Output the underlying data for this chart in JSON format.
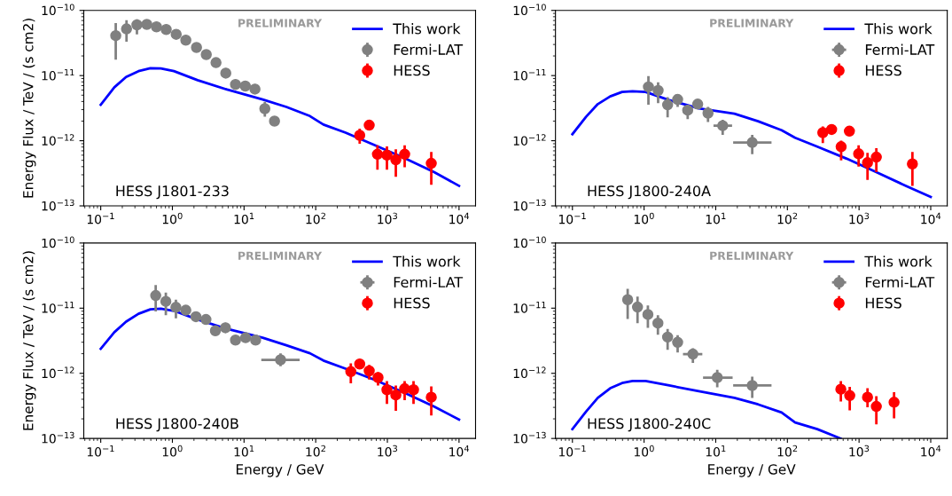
{
  "chart_data": [
    {
      "type": "scatter",
      "ylabel": "Energy Flux / TeV / (s cm2)",
      "annotations": [
        "PRELIMINARY",
        "HESS J1801-233"
      ],
      "xlim": [
        0.058,
        17000
      ],
      "ylim": [
        1e-13,
        1e-10
      ],
      "log": "xy",
      "legend": "top right",
      "marker": "circle",
      "xticks": [
        {
          "value": 0.1,
          "label": "10$^{−1}$"
        },
        {
          "value": 1,
          "label": "10$^{0}$"
        },
        {
          "value": 10,
          "label": "10$^{1}$"
        },
        {
          "value": 100,
          "label": "10$^{2}$"
        },
        {
          "value": 1000,
          "label": "10$^{3}$"
        },
        {
          "value": 10000,
          "label": "10$^{4}$"
        }
      ],
      "yticks": [
        {
          "value": 1e-13,
          "label": "10$^{−13}$"
        },
        {
          "value": 1e-12,
          "label": "10$^{−12}$"
        },
        {
          "value": 1e-11,
          "label": "10$^{−11}$"
        },
        {
          "value": 1e-10,
          "label": "10$^{−10}$"
        }
      ],
      "series": [
        {
          "name": "This work",
          "type": "line",
          "marker": "none",
          "color": "#0000ff",
          "x": [
            0.1,
            0.155,
            0.226,
            0.337,
            0.493,
            0.69,
            1.05,
            2.25,
            5.8,
            18.2,
            38.9,
            83,
            128,
            261,
            673,
            1742,
            4500,
            10000
          ],
          "values": [
            3.56e-12,
            6.6e-12,
            9.5e-12,
            1.17e-11,
            1.3e-11,
            1.29e-11,
            1.17e-11,
            8.5e-12,
            6.1e-12,
            4.3e-12,
            3.3e-12,
            2.39e-12,
            1.77e-12,
            1.33e-12,
            8.5e-13,
            5.4e-13,
            3.3e-13,
            2.03e-13
          ]
        },
        {
          "name": "Fermi-LAT",
          "type": "scatter",
          "color": "#808080",
          "x": [
            0.162,
            0.229,
            0.32,
            0.44,
            0.6,
            0.82,
            1.13,
            1.54,
            2.17,
            2.97,
            4.06,
            5.56,
            7.6,
            10.4,
            14.2,
            19.5,
            26.6
          ],
          "values": [
            4.1e-11,
            5.2e-11,
            6e-11,
            6.1e-11,
            5.6e-11,
            5.1e-11,
            4.3e-11,
            3.5e-11,
            2.7e-11,
            2.1e-11,
            1.58e-11,
            1.09e-11,
            7.3e-12,
            6.9e-12,
            6.2e-12,
            3.1e-12,
            2e-12
          ],
          "errors": [
            [
              1.75e-11,
              6.4e-11
            ],
            [
              3.3e-11,
              7.1e-11
            ],
            [
              4.3e-11,
              7.3e-11
            ],
            null,
            null,
            null,
            null,
            null,
            null,
            null,
            null,
            null,
            null,
            null,
            null,
            [
              2.33e-12,
              3.97e-12
            ],
            null
          ]
        },
        {
          "name": "HESS",
          "type": "scatter",
          "color": "#ff0000",
          "x": [
            411,
            558,
            727,
            986,
            1312,
            1743,
            4100
          ],
          "values": [
            1.21e-12,
            1.73e-12,
            6.2e-13,
            6e-13,
            5.1e-13,
            6.2e-13,
            4.5e-13
          ],
          "errors": [
            [
              9e-13,
              1.53e-12
            ],
            null,
            [
              3.6e-13,
              8.5e-13
            ],
            [
              3.6e-13,
              8.2e-13
            ],
            [
              2.8e-13,
              7.4e-13
            ],
            [
              3.9e-13,
              8.5e-13
            ],
            [
              2.1e-13,
              6.7e-13
            ]
          ]
        }
      ]
    },
    {
      "type": "scatter",
      "annotations": [
        "PRELIMINARY",
        "HESS J1800-240A"
      ],
      "xlim": [
        0.058,
        17000
      ],
      "ylim": [
        1e-13,
        1e-10
      ],
      "log": "xy",
      "legend": "top right",
      "marker": "circle",
      "xticks": [
        {
          "value": 0.1,
          "label": "10$^{−1}$"
        },
        {
          "value": 1,
          "label": "10$^{0}$"
        },
        {
          "value": 10,
          "label": "10$^{1}$"
        },
        {
          "value": 100,
          "label": "10$^{2}$"
        },
        {
          "value": 1000,
          "label": "10$^{3}$"
        },
        {
          "value": 10000,
          "label": "10$^{4}$"
        }
      ],
      "yticks": [
        {
          "value": 1e-13,
          "label": "10$^{−13}$"
        },
        {
          "value": 1e-12,
          "label": "10$^{−12}$"
        },
        {
          "value": 1e-11,
          "label": "10$^{−11}$"
        },
        {
          "value": 1e-10,
          "label": "10$^{−10}$"
        }
      ],
      "series": [
        {
          "name": "This work",
          "type": "line",
          "marker": "none",
          "color": "#0000ff",
          "x": [
            0.1,
            0.155,
            0.226,
            0.337,
            0.493,
            0.69,
            1.05,
            2.25,
            5.8,
            18.2,
            38.9,
            83,
            128,
            261,
            673,
            1742,
            4500,
            10000
          ],
          "values": [
            1.26e-12,
            2.33e-12,
            3.65e-12,
            4.8e-12,
            5.6e-12,
            5.75e-12,
            5.6e-12,
            4.2e-12,
            3.14e-12,
            2.6e-12,
            1.99e-12,
            1.45e-12,
            1.11e-12,
            8.1e-13,
            5.3e-13,
            3.3e-13,
            2.03e-13,
            1.37e-13
          ]
        },
        {
          "name": "Fermi-LAT",
          "type": "scatter",
          "color": "#808080",
          "x": [
            1.15,
            1.57,
            2.13,
            2.94,
            4.06,
            5.6,
            7.8,
            12.5,
            32.3
          ],
          "values": [
            6.7e-12,
            5.9e-12,
            3.56e-12,
            4.3e-12,
            2.94e-12,
            3.65e-12,
            2.65e-12,
            1.7e-12,
            9.4e-13
          ],
          "errors": [
            [
              3.56e-12,
              9.8e-12
            ],
            [
              3.76e-12,
              7.9e-12
            ],
            [
              2.28e-12,
              4.65e-12
            ],
            [
              3.3e-12,
              5e-12
            ],
            [
              2.14e-12,
              3.56e-12
            ],
            null,
            [
              1.94e-12,
              3.3e-12
            ],
            [
              1.23e-12,
              2.1e-12
            ],
            [
              6.2e-13,
              1.23e-12
            ]
          ],
          "xerrors": [
            null,
            null,
            null,
            null,
            null,
            null,
            null,
            [
              9.3,
              16.9
            ],
            [
              17.5,
              60
            ]
          ]
        },
        {
          "name": "HESS",
          "type": "scatter",
          "color": "#ff0000",
          "x": [
            312,
            414,
            562,
            733,
            986,
            1312,
            1742,
            5550
          ],
          "values": [
            1.33e-12,
            1.49e-12,
            8.1e-13,
            1.4e-12,
            6.3e-13,
            4.6e-13,
            5.6e-13,
            4.4e-13
          ],
          "errors": [
            [
              9.2e-13,
              1.66e-12
            ],
            null,
            [
              5e-13,
              1e-12
            ],
            null,
            [
              4e-13,
              8.5e-13
            ],
            [
              2.5e-13,
              6.5e-13
            ],
            [
              3.3e-13,
              7.7e-13
            ],
            [
              2.03e-13,
              6.7e-13
            ]
          ]
        }
      ]
    },
    {
      "type": "scatter",
      "xlabel": "Energy / GeV",
      "ylabel": "Energy Flux / TeV / (s cm2)",
      "annotations": [
        "PRELIMINARY",
        "HESS J1800-240B"
      ],
      "xlim": [
        0.058,
        17000
      ],
      "ylim": [
        1e-13,
        1e-10
      ],
      "log": "xy",
      "legend": "top right",
      "marker": "circle",
      "xticks": [
        {
          "value": 0.1,
          "label": "10$^{−1}$"
        },
        {
          "value": 1,
          "label": "10$^{0}$"
        },
        {
          "value": 10,
          "label": "10$^{1}$"
        },
        {
          "value": 100,
          "label": "10$^{2}$"
        },
        {
          "value": 1000,
          "label": "10$^{3}$"
        },
        {
          "value": 10000,
          "label": "10$^{4}$"
        }
      ],
      "yticks": [
        {
          "value": 1e-13,
          "label": "10$^{−13}$"
        },
        {
          "value": 1e-12,
          "label": "10$^{−12}$"
        },
        {
          "value": 1e-11,
          "label": "10$^{−11}$"
        },
        {
          "value": 1e-10,
          "label": "10$^{−10}$"
        }
      ],
      "series": [
        {
          "name": "This work",
          "type": "line",
          "marker": "none",
          "color": "#0000ff",
          "x": [
            0.1,
            0.155,
            0.226,
            0.337,
            0.493,
            0.69,
            1.05,
            2.25,
            5.8,
            18.2,
            38.9,
            83,
            128,
            261,
            673,
            1742,
            4500,
            10000
          ],
          "values": [
            2.38e-12,
            4.28e-12,
            6.2e-12,
            8.2e-12,
            9.6e-12,
            9.8e-12,
            9.1e-12,
            6.7e-12,
            4.8e-12,
            3.52e-12,
            2.69e-12,
            2.03e-12,
            1.57e-12,
            1.18e-12,
            7.9e-13,
            5e-13,
            3.08e-13,
            1.95e-13
          ]
        },
        {
          "name": "Fermi-LAT",
          "type": "scatter",
          "color": "#808080",
          "x": [
            0.585,
            0.81,
            1.12,
            1.54,
            2.13,
            2.94,
            3.98,
            5.5,
            7.6,
            10.5,
            14.5,
            32.3
          ],
          "values": [
            1.56e-11,
            1.27e-11,
            1.03e-11,
            9.3e-12,
            7.4e-12,
            6.7e-12,
            4.5e-12,
            5e-12,
            3.24e-12,
            3.52e-12,
            3.24e-12,
            1.61e-12
          ],
          "errors": [
            [
              8.9e-12,
              2.26e-11
            ],
            [
              7.8e-12,
              1.73e-11
            ],
            [
              7e-12,
              1.35e-11
            ],
            null,
            null,
            null,
            null,
            null,
            null,
            null,
            null,
            [
              1.28e-12,
              2.03e-12
            ]
          ],
          "xerrors": [
            null,
            null,
            null,
            null,
            null,
            null,
            null,
            null,
            null,
            null,
            null,
            [
              17.4,
              59.7
            ]
          ]
        },
        {
          "name": "HESS",
          "type": "scatter",
          "color": "#ff0000",
          "x": [
            309,
            411,
            558,
            741,
            986,
            1312,
            1742,
            2317,
            4100
          ],
          "values": [
            1.06e-12,
            1.39e-12,
            1.09e-12,
            8.6e-13,
            5.6e-13,
            4.65e-13,
            5.8e-13,
            5.6e-13,
            4.3e-13
          ],
          "errors": [
            [
              7e-13,
              1.42e-12
            ],
            null,
            [
              8e-13,
              1.35e-12
            ],
            [
              6.5e-13,
              1.04e-12
            ],
            [
              3.4e-13,
              7.6e-13
            ],
            [
              2.66e-13,
              6.5e-13
            ],
            [
              3.86e-13,
              7.6e-13
            ],
            [
              3.4e-13,
              7.6e-13
            ],
            [
              2.25e-13,
              6.3e-13
            ]
          ]
        }
      ]
    },
    {
      "type": "scatter",
      "xlabel": "Energy / GeV",
      "annotations": [
        "PRELIMINARY",
        "HESS J1800-240C"
      ],
      "xlim": [
        0.058,
        17000
      ],
      "ylim": [
        1e-13,
        1e-10
      ],
      "log": "xy",
      "legend": "top right",
      "marker": "circle",
      "xticks": [
        {
          "value": 0.1,
          "label": "10$^{−1}$"
        },
        {
          "value": 1,
          "label": "10$^{0}$"
        },
        {
          "value": 10,
          "label": "10$^{1}$"
        },
        {
          "value": 100,
          "label": "10$^{2}$"
        },
        {
          "value": 1000,
          "label": "10$^{3}$"
        },
        {
          "value": 10000,
          "label": "10$^{4}$"
        }
      ],
      "yticks": [
        {
          "value": 1e-13,
          "label": "10$^{−13}$"
        },
        {
          "value": 1e-12,
          "label": "10$^{−12}$"
        },
        {
          "value": 1e-11,
          "label": "10$^{−11}$"
        },
        {
          "value": 1e-10,
          "label": "10$^{−10}$"
        }
      ],
      "series": [
        {
          "name": "This work",
          "type": "line",
          "marker": "none",
          "color": "#0000ff",
          "x": [
            0.1,
            0.155,
            0.226,
            0.337,
            0.493,
            0.69,
            1.05,
            2.25,
            5.8,
            18.2,
            38.9,
            83,
            128,
            261,
            552
          ],
          "values": [
            1.39e-13,
            2.58e-13,
            4.2e-13,
            5.9e-13,
            7.1e-13,
            7.6e-13,
            7.6e-13,
            6.5e-13,
            5.3e-13,
            4.2e-13,
            3.34e-13,
            2.5e-13,
            1.76e-13,
            1.39e-13,
            1e-13
          ]
        },
        {
          "name": "Fermi-LAT",
          "type": "scatter",
          "color": "#808080",
          "x": [
            0.59,
            0.81,
            1.13,
            1.56,
            2.13,
            2.94,
            4.8,
            10.5,
            32.3
          ],
          "values": [
            1.35e-11,
            1.04e-11,
            8e-12,
            5.9e-12,
            3.6e-12,
            2.99e-12,
            1.97e-12,
            8.6e-13,
            6.5e-13
          ],
          "errors": [
            [
              6.8e-12,
              1.98e-11
            ],
            [
              5.9e-12,
              1.5e-11
            ],
            [
              5e-12,
              1.1e-11
            ],
            [
              3.9e-12,
              7.8e-12
            ],
            [
              2.3e-12,
              4.8e-12
            ],
            [
              2.08e-12,
              3.86e-12
            ],
            [
              1.45e-12,
              2.43e-12
            ],
            [
              6.1e-13,
              1.13e-12
            ],
            [
              4.2e-13,
              8.9e-13
            ]
          ],
          "xerrors": [
            null,
            null,
            null,
            null,
            null,
            null,
            [
              3.49,
              6.5
            ],
            [
              6.65,
              17.2
            ],
            [
              17.5,
              60
            ]
          ]
        },
        {
          "name": "HESS",
          "type": "scatter",
          "color": "#ff0000",
          "x": [
            557,
            741,
            1312,
            1742,
            3080
          ],
          "values": [
            5.7e-13,
            4.55e-13,
            4.3e-13,
            3.1e-13,
            3.6e-13
          ],
          "errors": [
            [
              3.7e-13,
              7.6e-13
            ],
            [
              2.7e-13,
              6.2e-13
            ],
            [
              3e-13,
              5.9e-13
            ],
            [
              1.65e-13,
              4.45e-13
            ],
            [
              2.03e-13,
              5.15e-13
            ]
          ]
        }
      ]
    }
  ]
}
